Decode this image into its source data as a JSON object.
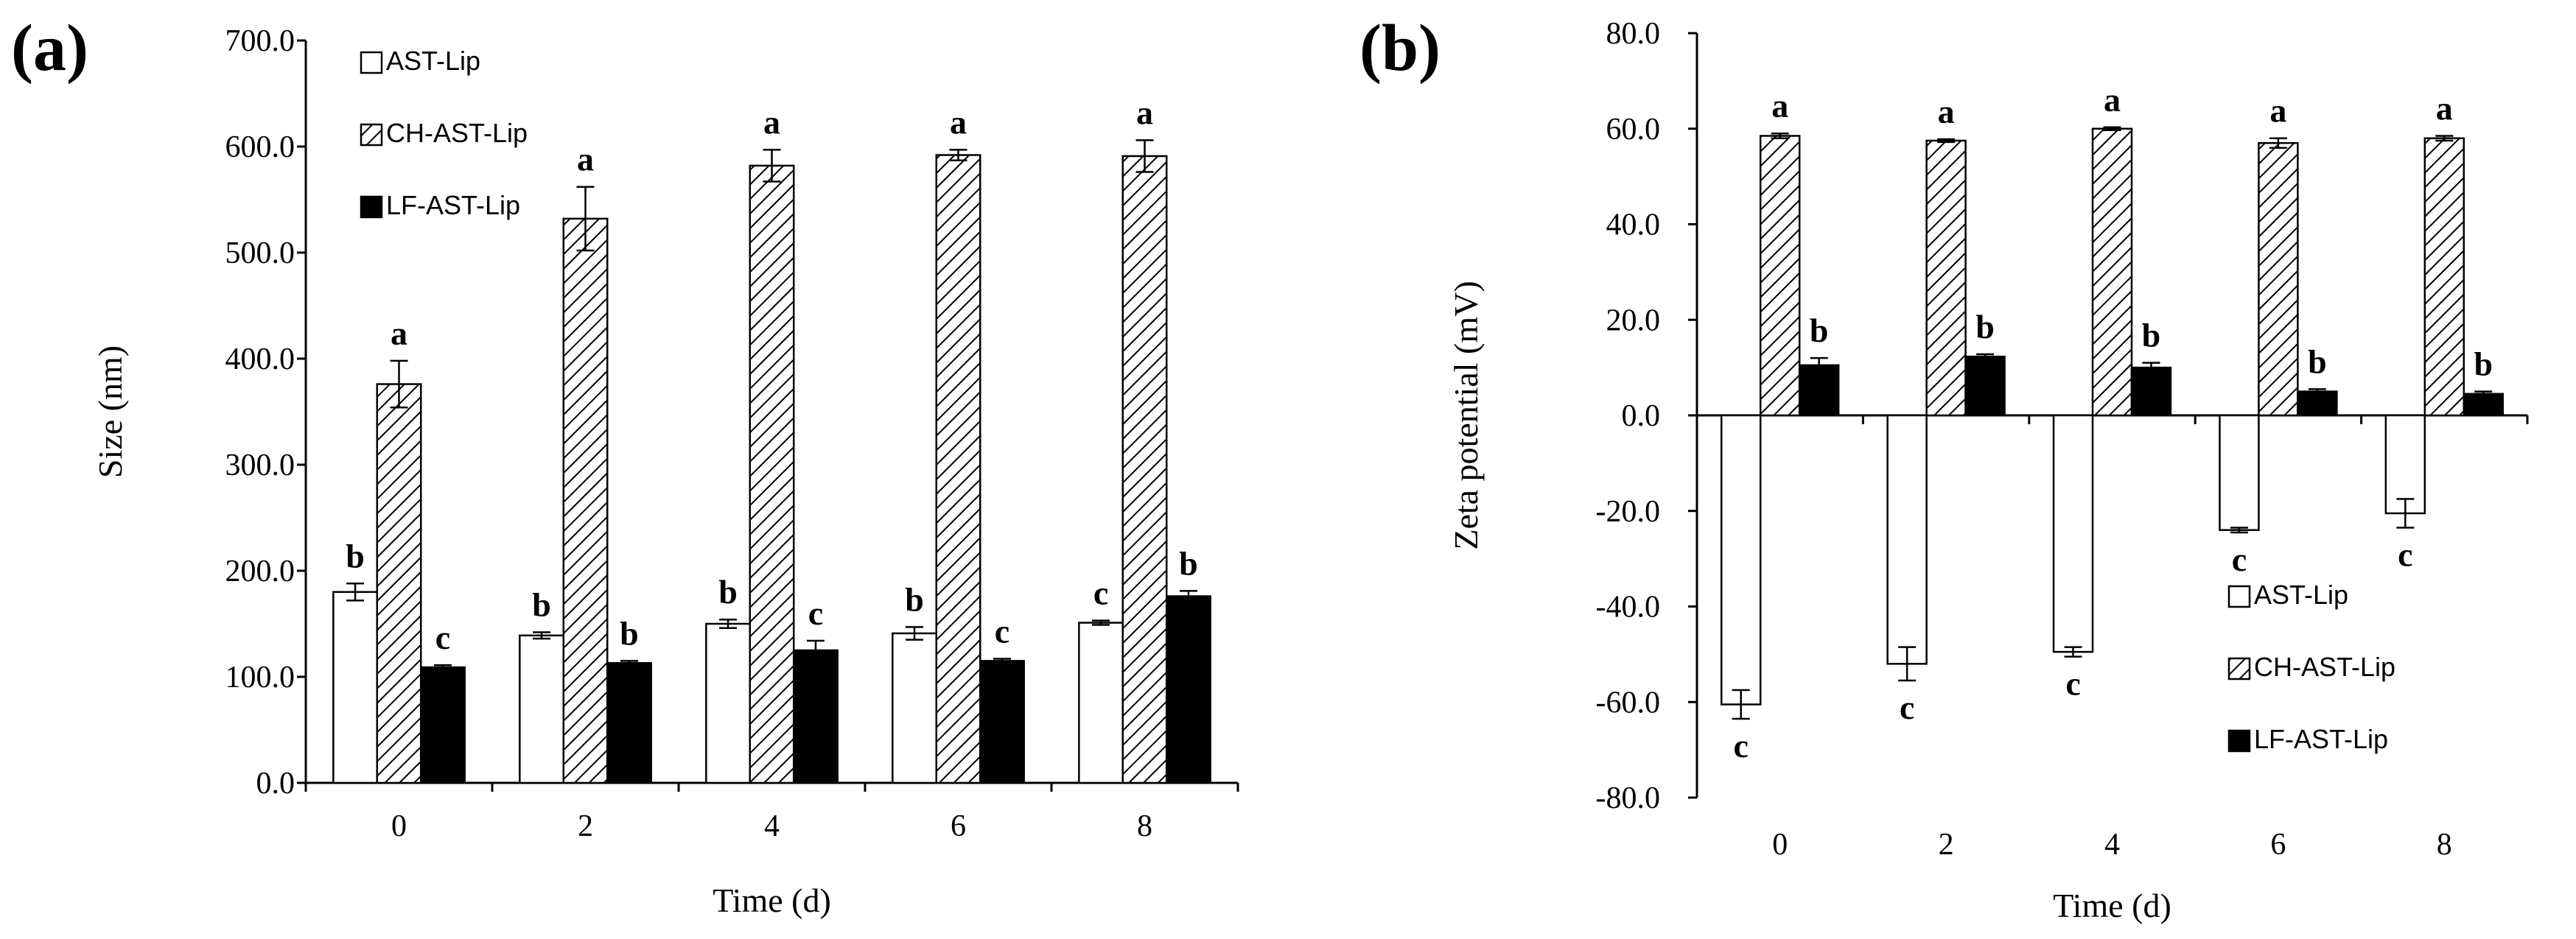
{
  "chart_data": [
    {
      "type": "bar",
      "panel_label": "(a)",
      "title": "",
      "xlabel": "Time (d)",
      "ylabel": "Size (nm)",
      "ylim": [
        0,
        700
      ],
      "yticks": [
        "0.0",
        "100.0",
        "200.0",
        "300.0",
        "400.0",
        "500.0",
        "600.0",
        "700.0"
      ],
      "categories": [
        "0",
        "2",
        "4",
        "6",
        "8"
      ],
      "legend_position": "top-left",
      "series": [
        {
          "name": "AST-Lip",
          "pattern": "white",
          "values": [
            180,
            139,
            150,
            141,
            151
          ],
          "errors": [
            8,
            3,
            4,
            6,
            2
          ],
          "letters": [
            "b",
            "b",
            "b",
            "b",
            "c"
          ]
        },
        {
          "name": "CH-AST-Lip",
          "pattern": "hatch",
          "values": [
            376,
            532,
            582,
            592,
            591
          ],
          "errors": [
            22,
            30,
            15,
            5,
            15
          ],
          "letters": [
            "a",
            "a",
            "a",
            "a",
            "a"
          ]
        },
        {
          "name": "LF-AST-Lip",
          "pattern": "black",
          "values": [
            109,
            113,
            125,
            115,
            176
          ],
          "errors": [
            2,
            2,
            9,
            2,
            5
          ],
          "letters": [
            "c",
            "b",
            "c",
            "c",
            "b"
          ]
        }
      ]
    },
    {
      "type": "bar",
      "panel_label": "(b)",
      "title": "",
      "xlabel": "Time (d)",
      "ylabel": "Zeta potential (mV)",
      "ylim": [
        -80,
        80
      ],
      "yticks": [
        "-80.0",
        "-60.0",
        "-40.0",
        "-20.0",
        "0.0",
        "20.0",
        "40.0",
        "60.0",
        "80.0"
      ],
      "categories": [
        "0",
        "2",
        "4",
        "6",
        "8"
      ],
      "legend_position": "bottom-right",
      "series": [
        {
          "name": "AST-Lip",
          "pattern": "white",
          "values": [
            -60.5,
            -52,
            -49.5,
            -24,
            -20.5
          ],
          "errors": [
            3,
            3.5,
            1,
            0.5,
            3
          ],
          "letters": [
            "c",
            "c",
            "c",
            "c",
            "c"
          ]
        },
        {
          "name": "CH-AST-Lip",
          "pattern": "hatch",
          "values": [
            58.5,
            57.5,
            60,
            57,
            58
          ],
          "errors": [
            0.5,
            0.3,
            0.3,
            1,
            0.5
          ],
          "letters": [
            "a",
            "a",
            "a",
            "a",
            "a"
          ]
        },
        {
          "name": "LF-AST-Lip",
          "pattern": "black",
          "values": [
            10.5,
            12.3,
            10,
            5,
            4.5
          ],
          "errors": [
            1.5,
            0.5,
            1,
            0.5,
            0.5
          ],
          "letters": [
            "b",
            "b",
            "b",
            "b",
            "b"
          ]
        }
      ]
    }
  ]
}
